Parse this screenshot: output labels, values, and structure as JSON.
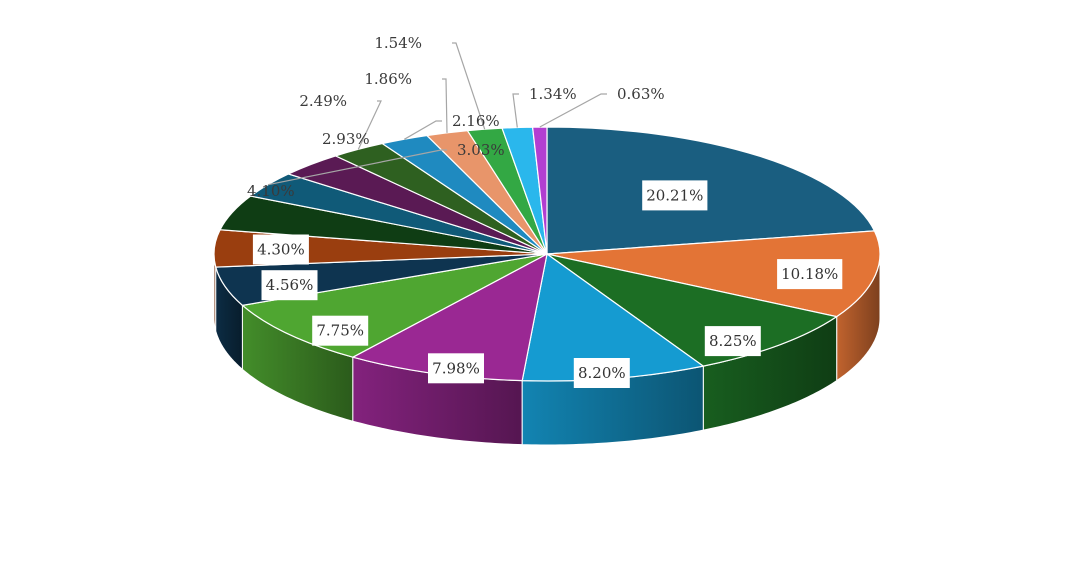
{
  "chart_data": {
    "type": "pie",
    "style": "3d-exploded-none",
    "start_angle_deg": 0,
    "direction": "clockwise",
    "slices": [
      {
        "label": "20.21%",
        "value": 20.21,
        "color": "#1a5e80",
        "label_style": "box"
      },
      {
        "label": "10.18%",
        "value": 10.18,
        "color": "#e37436",
        "label_style": "box"
      },
      {
        "label": "8.25%",
        "value": 8.25,
        "color": "#1c6e24",
        "label_style": "box"
      },
      {
        "label": "8.20%",
        "value": 8.2,
        "color": "#159bd1",
        "label_style": "box"
      },
      {
        "label": "7.98%",
        "value": 7.98,
        "color": "#9a2893",
        "label_style": "box"
      },
      {
        "label": "7.75%",
        "value": 7.75,
        "color": "#4fa631",
        "label_style": "box"
      },
      {
        "label": "4.56%",
        "value": 4.56,
        "color": "#0e3450",
        "label_style": "box"
      },
      {
        "label": "4.30%",
        "value": 4.3,
        "color": "#9a3e0f",
        "label_style": "box"
      },
      {
        "label": "4.10%",
        "value": 4.1,
        "color": "#0f3d14",
        "label_style": "outside"
      },
      {
        "label": "3.03%",
        "value": 3.03,
        "color": "#105a78",
        "label_style": "leader"
      },
      {
        "label": "2.93%",
        "value": 2.93,
        "color": "#5a1a54",
        "label_style": "outside"
      },
      {
        "label": "2.49%",
        "value": 2.49,
        "color": "#2e6020",
        "label_style": "leader"
      },
      {
        "label": "2.16%",
        "value": 2.16,
        "color": "#1f8ac0",
        "label_style": "leader"
      },
      {
        "label": "1.86%",
        "value": 1.86,
        "color": "#e8956a",
        "label_style": "leader"
      },
      {
        "label": "1.54%",
        "value": 1.54,
        "color": "#33a844",
        "label_style": "leader"
      },
      {
        "label": "1.34%",
        "value": 1.34,
        "color": "#2ab7ec",
        "label_style": "leader"
      },
      {
        "label": "0.63%",
        "value": 0.63,
        "color": "#b23ed1",
        "label_style": "leader"
      }
    ]
  }
}
